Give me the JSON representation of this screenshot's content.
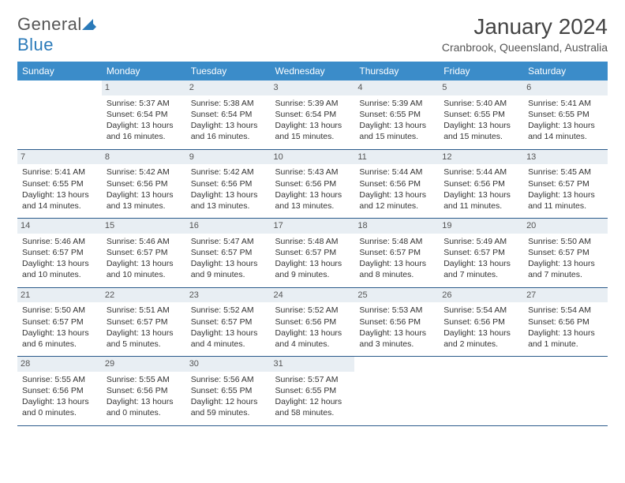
{
  "logo": {
    "word1": "General",
    "word2": "Blue"
  },
  "title": "January 2024",
  "location": "Cranbrook, Queensland, Australia",
  "day_headers": [
    "Sunday",
    "Monday",
    "Tuesday",
    "Wednesday",
    "Thursday",
    "Friday",
    "Saturday"
  ],
  "colors": {
    "header_bg": "#3b8cc9",
    "header_text": "#ffffff",
    "rule": "#2a5a8a",
    "daynum_bg": "#e8eef3",
    "logo_blue": "#2a7ab9"
  },
  "weeks": [
    [
      null,
      {
        "d": "1",
        "sr": "5:37 AM",
        "ss": "6:54 PM",
        "dl": "13 hours and 16 minutes."
      },
      {
        "d": "2",
        "sr": "5:38 AM",
        "ss": "6:54 PM",
        "dl": "13 hours and 16 minutes."
      },
      {
        "d": "3",
        "sr": "5:39 AM",
        "ss": "6:54 PM",
        "dl": "13 hours and 15 minutes."
      },
      {
        "d": "4",
        "sr": "5:39 AM",
        "ss": "6:55 PM",
        "dl": "13 hours and 15 minutes."
      },
      {
        "d": "5",
        "sr": "5:40 AM",
        "ss": "6:55 PM",
        "dl": "13 hours and 15 minutes."
      },
      {
        "d": "6",
        "sr": "5:41 AM",
        "ss": "6:55 PM",
        "dl": "13 hours and 14 minutes."
      }
    ],
    [
      {
        "d": "7",
        "sr": "5:41 AM",
        "ss": "6:55 PM",
        "dl": "13 hours and 14 minutes."
      },
      {
        "d": "8",
        "sr": "5:42 AM",
        "ss": "6:56 PM",
        "dl": "13 hours and 13 minutes."
      },
      {
        "d": "9",
        "sr": "5:42 AM",
        "ss": "6:56 PM",
        "dl": "13 hours and 13 minutes."
      },
      {
        "d": "10",
        "sr": "5:43 AM",
        "ss": "6:56 PM",
        "dl": "13 hours and 13 minutes."
      },
      {
        "d": "11",
        "sr": "5:44 AM",
        "ss": "6:56 PM",
        "dl": "13 hours and 12 minutes."
      },
      {
        "d": "12",
        "sr": "5:44 AM",
        "ss": "6:56 PM",
        "dl": "13 hours and 11 minutes."
      },
      {
        "d": "13",
        "sr": "5:45 AM",
        "ss": "6:57 PM",
        "dl": "13 hours and 11 minutes."
      }
    ],
    [
      {
        "d": "14",
        "sr": "5:46 AM",
        "ss": "6:57 PM",
        "dl": "13 hours and 10 minutes."
      },
      {
        "d": "15",
        "sr": "5:46 AM",
        "ss": "6:57 PM",
        "dl": "13 hours and 10 minutes."
      },
      {
        "d": "16",
        "sr": "5:47 AM",
        "ss": "6:57 PM",
        "dl": "13 hours and 9 minutes."
      },
      {
        "d": "17",
        "sr": "5:48 AM",
        "ss": "6:57 PM",
        "dl": "13 hours and 9 minutes."
      },
      {
        "d": "18",
        "sr": "5:48 AM",
        "ss": "6:57 PM",
        "dl": "13 hours and 8 minutes."
      },
      {
        "d": "19",
        "sr": "5:49 AM",
        "ss": "6:57 PM",
        "dl": "13 hours and 7 minutes."
      },
      {
        "d": "20",
        "sr": "5:50 AM",
        "ss": "6:57 PM",
        "dl": "13 hours and 7 minutes."
      }
    ],
    [
      {
        "d": "21",
        "sr": "5:50 AM",
        "ss": "6:57 PM",
        "dl": "13 hours and 6 minutes."
      },
      {
        "d": "22",
        "sr": "5:51 AM",
        "ss": "6:57 PM",
        "dl": "13 hours and 5 minutes."
      },
      {
        "d": "23",
        "sr": "5:52 AM",
        "ss": "6:57 PM",
        "dl": "13 hours and 4 minutes."
      },
      {
        "d": "24",
        "sr": "5:52 AM",
        "ss": "6:56 PM",
        "dl": "13 hours and 4 minutes."
      },
      {
        "d": "25",
        "sr": "5:53 AM",
        "ss": "6:56 PM",
        "dl": "13 hours and 3 minutes."
      },
      {
        "d": "26",
        "sr": "5:54 AM",
        "ss": "6:56 PM",
        "dl": "13 hours and 2 minutes."
      },
      {
        "d": "27",
        "sr": "5:54 AM",
        "ss": "6:56 PM",
        "dl": "13 hours and 1 minute."
      }
    ],
    [
      {
        "d": "28",
        "sr": "5:55 AM",
        "ss": "6:56 PM",
        "dl": "13 hours and 0 minutes."
      },
      {
        "d": "29",
        "sr": "5:55 AM",
        "ss": "6:56 PM",
        "dl": "13 hours and 0 minutes."
      },
      {
        "d": "30",
        "sr": "5:56 AM",
        "ss": "6:55 PM",
        "dl": "12 hours and 59 minutes."
      },
      {
        "d": "31",
        "sr": "5:57 AM",
        "ss": "6:55 PM",
        "dl": "12 hours and 58 minutes."
      },
      null,
      null,
      null
    ]
  ]
}
